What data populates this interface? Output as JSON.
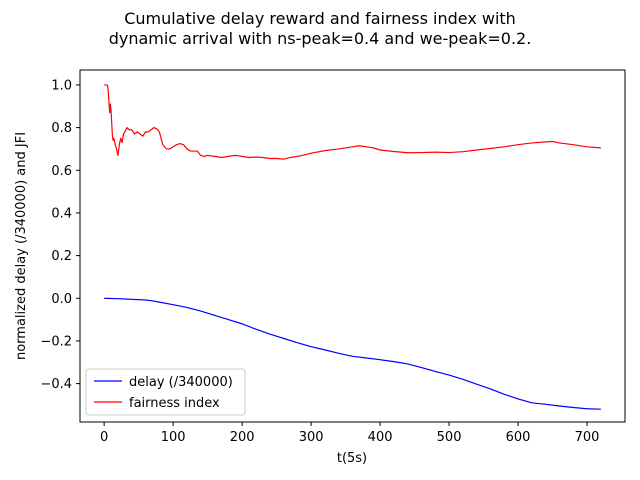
{
  "chart_data": {
    "type": "line",
    "title": [
      "Cumulative delay reward and fairness index with",
      "dynamic arrival with ns-peak=0.4 and we-peak=0.2."
    ],
    "xlabel": "t(5s)",
    "ylabel": "normalized delay (/340000) and JFI",
    "xlim": [
      -35,
      755
    ],
    "ylim": [
      -0.58,
      1.07
    ],
    "xticks": [
      0,
      100,
      200,
      300,
      400,
      500,
      600,
      700
    ],
    "yticks": [
      -0.4,
      -0.2,
      0.0,
      0.2,
      0.4,
      0.6,
      0.8,
      1.0
    ],
    "xtick_labels": [
      "0",
      "100",
      "200",
      "300",
      "400",
      "500",
      "600",
      "700"
    ],
    "ytick_labels": [
      "−0.4",
      "−0.2",
      "0.0",
      "0.2",
      "0.4",
      "0.6",
      "0.8",
      "1.0"
    ],
    "grid": false,
    "legend_position": "lower-left",
    "series": [
      {
        "name": "delay (/340000)",
        "color": "#0000ff",
        "x": [
          0,
          20,
          40,
          60,
          70,
          80,
          100,
          120,
          140,
          160,
          180,
          200,
          220,
          240,
          260,
          280,
          300,
          320,
          340,
          360,
          380,
          400,
          420,
          440,
          460,
          480,
          500,
          520,
          540,
          560,
          580,
          600,
          620,
          640,
          660,
          680,
          700,
          720
        ],
        "y": [
          0.0,
          -0.002,
          -0.005,
          -0.008,
          -0.012,
          -0.018,
          -0.03,
          -0.043,
          -0.06,
          -0.08,
          -0.1,
          -0.12,
          -0.145,
          -0.168,
          -0.188,
          -0.208,
          -0.227,
          -0.242,
          -0.258,
          -0.272,
          -0.28,
          -0.288,
          -0.297,
          -0.308,
          -0.325,
          -0.343,
          -0.36,
          -0.38,
          -0.403,
          -0.425,
          -0.45,
          -0.472,
          -0.49,
          -0.497,
          -0.505,
          -0.512,
          -0.518,
          -0.52
        ]
      },
      {
        "name": "fairness index",
        "color": "#ff0000",
        "x": [
          0,
          2,
          4,
          5,
          6,
          7,
          8,
          9,
          10,
          11,
          12,
          13,
          14,
          16,
          18,
          20,
          22,
          24,
          26,
          28,
          30,
          33,
          36,
          40,
          44,
          48,
          52,
          56,
          60,
          64,
          68,
          72,
          76,
          80,
          85,
          90,
          95,
          100,
          105,
          110,
          115,
          120,
          125,
          130,
          135,
          140,
          145,
          150,
          160,
          170,
          180,
          190,
          200,
          210,
          220,
          230,
          240,
          250,
          260,
          270,
          280,
          290,
          300,
          320,
          340,
          360,
          370,
          380,
          390,
          400,
          420,
          440,
          460,
          480,
          500,
          520,
          540,
          560,
          580,
          600,
          620,
          640,
          650,
          660,
          680,
          700,
          720
        ],
        "y": [
          1.0,
          1.0,
          1.0,
          0.995,
          0.97,
          0.92,
          0.87,
          0.91,
          0.88,
          0.82,
          0.76,
          0.74,
          0.75,
          0.72,
          0.7,
          0.67,
          0.72,
          0.75,
          0.73,
          0.77,
          0.78,
          0.8,
          0.79,
          0.79,
          0.77,
          0.78,
          0.77,
          0.76,
          0.78,
          0.78,
          0.79,
          0.8,
          0.795,
          0.78,
          0.72,
          0.7,
          0.7,
          0.71,
          0.72,
          0.725,
          0.72,
          0.7,
          0.69,
          0.69,
          0.69,
          0.67,
          0.665,
          0.67,
          0.665,
          0.66,
          0.665,
          0.67,
          0.665,
          0.66,
          0.662,
          0.66,
          0.655,
          0.655,
          0.652,
          0.66,
          0.665,
          0.672,
          0.68,
          0.692,
          0.7,
          0.71,
          0.715,
          0.71,
          0.705,
          0.695,
          0.688,
          0.682,
          0.683,
          0.685,
          0.683,
          0.687,
          0.695,
          0.702,
          0.71,
          0.72,
          0.728,
          0.733,
          0.735,
          0.728,
          0.72,
          0.71,
          0.705
        ]
      }
    ]
  }
}
